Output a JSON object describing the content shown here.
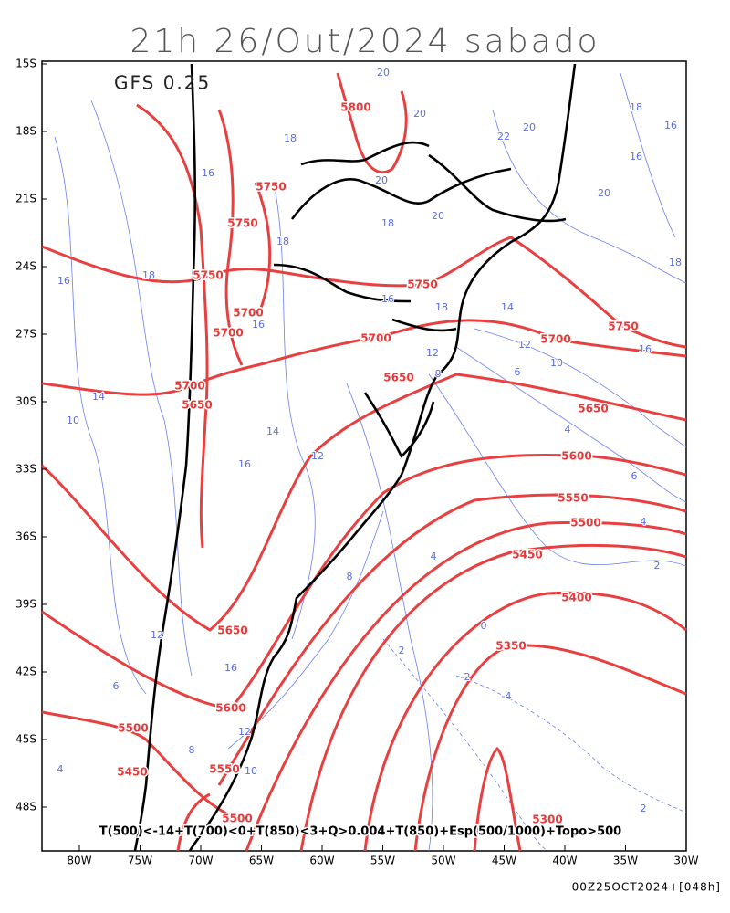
{
  "header": {
    "title": "21h 26/Out/2024 sabado",
    "model": "GFS 0.25"
  },
  "axes": {
    "lat_labels": [
      "15S",
      "18S",
      "21S",
      "24S",
      "27S",
      "30S",
      "33S",
      "36S",
      "39S",
      "42S",
      "45S",
      "48S"
    ],
    "lon_labels": [
      "80W",
      "75W",
      "70W",
      "65W",
      "60W",
      "55W",
      "50W",
      "45W",
      "40W",
      "35W",
      "30W"
    ]
  },
  "contours": {
    "height_labels": [
      5800,
      5750,
      5750,
      5750,
      5700,
      5700,
      5750,
      5700,
      5650,
      5700,
      5650,
      5750,
      5700,
      5650,
      5600,
      5550,
      5500,
      5450,
      5400,
      5350,
      5650,
      5600,
      5500,
      5450,
      5550,
      5500,
      5300
    ],
    "thickness_labels": [
      20,
      20,
      18,
      16,
      20,
      20,
      18,
      22,
      20,
      18,
      16,
      16,
      20,
      18,
      18,
      16,
      16,
      14,
      10,
      8,
      12,
      10,
      6,
      16,
      14,
      12,
      16,
      4,
      6,
      4,
      2,
      4,
      8,
      0,
      2,
      -2,
      -4,
      12,
      16,
      6,
      12,
      8,
      10,
      4,
      2,
      18,
      14,
      18,
      16,
      12
    ]
  },
  "footer": {
    "caption": "T(500)<-14+T(700)<0+T(850)<3+Q>0.004+T(850)+Esp(500/1000)+Topo>500",
    "timestamp": "00Z25OCT2024+[048h]"
  }
}
